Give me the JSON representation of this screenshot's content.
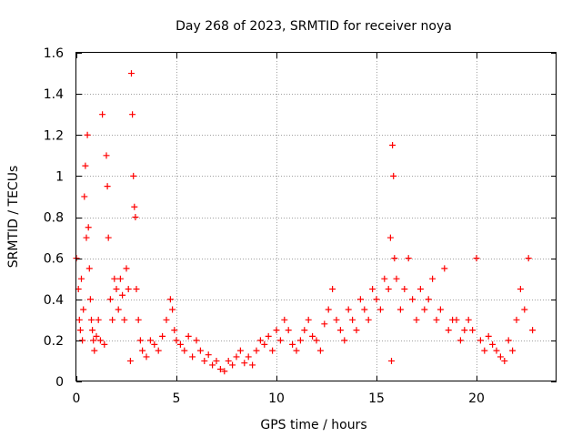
{
  "chart_data": {
    "type": "scatter",
    "title": "Day 268 of 2023, SRMTID for receiver noya",
    "xlabel": "GPS time / hours",
    "ylabel": "SRMTID / TECUs",
    "xlim": [
      0,
      24
    ],
    "ylim": [
      0,
      1.6
    ],
    "x_ticks": [
      0,
      5,
      10,
      15,
      20
    ],
    "x_tick_labels": [
      "0",
      "5",
      "10",
      "15",
      "20"
    ],
    "y_ticks": [
      0,
      0.2,
      0.4,
      0.6,
      0.8,
      1.0,
      1.2,
      1.4,
      1.6
    ],
    "y_tick_labels": [
      "0",
      "0.2",
      "0.4",
      "0.6",
      "0.8",
      "1",
      "1.2",
      "1.4",
      "1.6"
    ],
    "grid": true,
    "marker": "+",
    "series": [
      {
        "name": "SRMTID",
        "color": "#ff0000",
        "x": [
          0.0,
          0.1,
          0.15,
          0.2,
          0.25,
          0.3,
          0.35,
          0.4,
          0.45,
          0.5,
          0.55,
          0.6,
          0.65,
          0.7,
          0.75,
          0.8,
          0.85,
          0.9,
          1.0,
          1.1,
          1.2,
          1.3,
          1.4,
          1.5,
          1.55,
          1.6,
          1.7,
          1.8,
          1.9,
          2.0,
          2.1,
          2.2,
          2.3,
          2.4,
          2.5,
          2.6,
          2.7,
          2.75,
          2.8,
          2.85,
          2.9,
          2.95,
          3.0,
          3.1,
          3.2,
          3.3,
          3.5,
          3.7,
          3.9,
          4.1,
          4.3,
          4.5,
          4.7,
          4.8,
          4.9,
          5.0,
          5.2,
          5.4,
          5.6,
          5.8,
          6.0,
          6.2,
          6.4,
          6.6,
          6.8,
          7.0,
          7.2,
          7.4,
          7.6,
          7.8,
          8.0,
          8.2,
          8.4,
          8.6,
          8.8,
          9.0,
          9.2,
          9.4,
          9.6,
          9.8,
          10.0,
          10.2,
          10.4,
          10.6,
          10.8,
          11.0,
          11.2,
          11.4,
          11.6,
          11.8,
          12.0,
          12.2,
          12.4,
          12.6,
          12.8,
          13.0,
          13.2,
          13.4,
          13.6,
          13.8,
          14.0,
          14.2,
          14.4,
          14.6,
          14.8,
          15.0,
          15.2,
          15.4,
          15.6,
          15.7,
          15.75,
          15.8,
          15.85,
          15.9,
          16.0,
          16.2,
          16.4,
          16.6,
          16.8,
          17.0,
          17.2,
          17.4,
          17.6,
          17.8,
          18.0,
          18.2,
          18.4,
          18.6,
          18.8,
          19.0,
          19.2,
          19.4,
          19.6,
          19.8,
          20.0,
          20.2,
          20.4,
          20.6,
          20.8,
          21.0,
          21.2,
          21.4,
          21.6,
          21.8,
          22.0,
          22.2,
          22.4,
          22.6,
          22.8
        ],
        "y": [
          0.6,
          0.45,
          0.3,
          0.25,
          0.5,
          0.2,
          0.35,
          0.9,
          1.05,
          0.7,
          1.2,
          0.75,
          0.55,
          0.4,
          0.3,
          0.25,
          0.2,
          0.15,
          0.22,
          0.3,
          0.2,
          1.3,
          0.18,
          1.1,
          0.95,
          0.7,
          0.4,
          0.3,
          0.5,
          0.45,
          0.35,
          0.5,
          0.42,
          0.3,
          0.55,
          0.45,
          0.1,
          1.5,
          1.3,
          1.0,
          0.85,
          0.8,
          0.45,
          0.3,
          0.2,
          0.15,
          0.12,
          0.2,
          0.18,
          0.15,
          0.22,
          0.3,
          0.4,
          0.35,
          0.25,
          0.2,
          0.18,
          0.15,
          0.22,
          0.12,
          0.2,
          0.15,
          0.1,
          0.13,
          0.08,
          0.1,
          0.06,
          0.05,
          0.1,
          0.08,
          0.12,
          0.15,
          0.09,
          0.12,
          0.08,
          0.15,
          0.2,
          0.18,
          0.22,
          0.15,
          0.25,
          0.2,
          0.3,
          0.25,
          0.18,
          0.15,
          0.2,
          0.25,
          0.3,
          0.22,
          0.2,
          0.15,
          0.28,
          0.35,
          0.45,
          0.3,
          0.25,
          0.2,
          0.35,
          0.3,
          0.25,
          0.4,
          0.35,
          0.3,
          0.45,
          0.4,
          0.35,
          0.5,
          0.45,
          0.7,
          0.1,
          1.15,
          1.0,
          0.6,
          0.5,
          0.35,
          0.45,
          0.6,
          0.4,
          0.3,
          0.45,
          0.35,
          0.4,
          0.5,
          0.3,
          0.35,
          0.55,
          0.25,
          0.3,
          0.3,
          0.2,
          0.25,
          0.3,
          0.25,
          0.6,
          0.2,
          0.15,
          0.22,
          0.18,
          0.15,
          0.12,
          0.1,
          0.2,
          0.15,
          0.3,
          0.45,
          0.35,
          0.6,
          0.25
        ]
      }
    ]
  }
}
